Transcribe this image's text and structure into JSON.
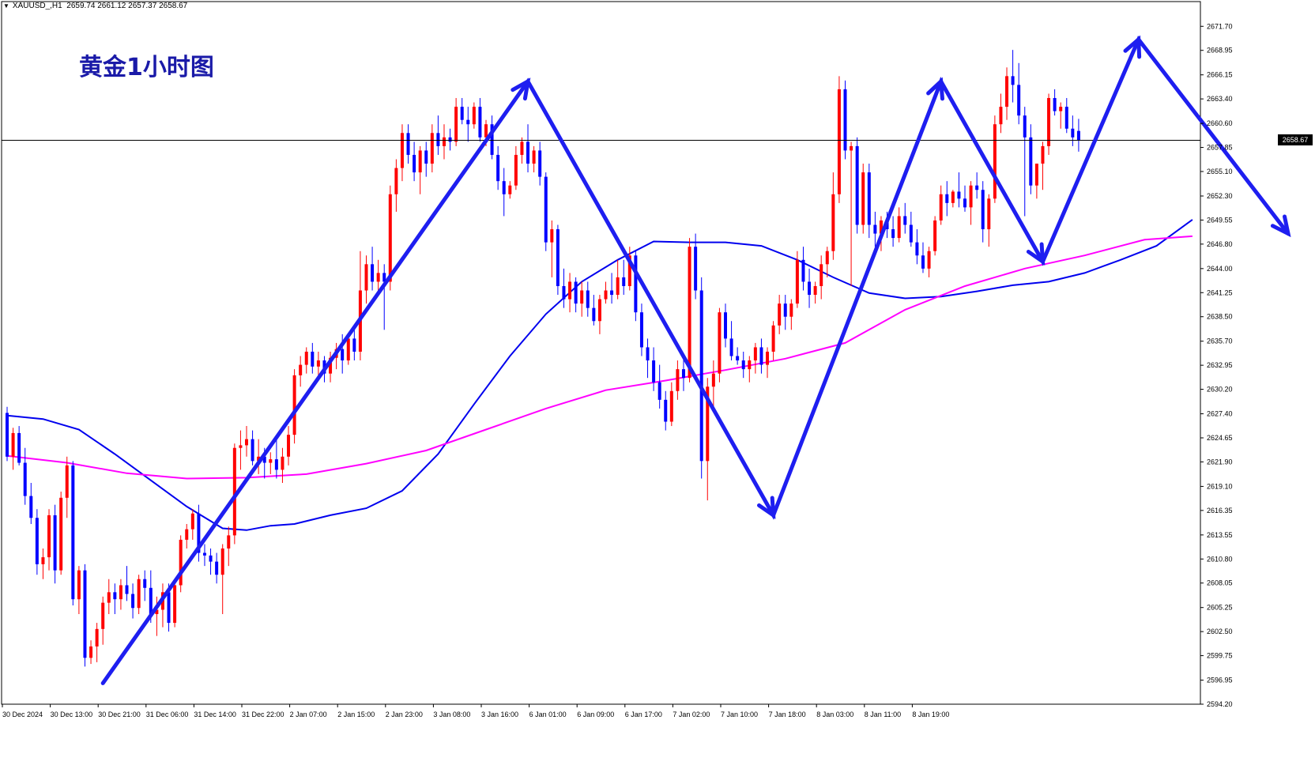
{
  "symbol": "XAUUSD_,H1",
  "ohlc": "2659.74 2661.12 2657.37 2658.67",
  "title": "黄金1小时图",
  "current_price": "2658.67",
  "colors": {
    "title": "#1a1aa8",
    "bull": "#ff0000",
    "bear": "#0000ff",
    "ma_fast": "#0000ee",
    "ma_slow": "#ff00ff",
    "arrows": "#1e1ef0",
    "axis": "#000000"
  },
  "chart_data": {
    "type": "candlestick",
    "ylim": [
      2594.2,
      2672.9
    ],
    "y_ticks": [
      "2671.70",
      "2668.95",
      "2666.15",
      "2663.40",
      "2660.60",
      "2657.85",
      "2655.10",
      "2652.30",
      "2649.55",
      "2646.80",
      "2644.00",
      "2641.25",
      "2638.50",
      "2635.70",
      "2632.95",
      "2630.20",
      "2627.40",
      "2624.65",
      "2621.90",
      "2619.10",
      "2616.35",
      "2613.55",
      "2610.80",
      "2608.05",
      "2605.25",
      "2602.50",
      "2599.75",
      "2596.95",
      "2594.20"
    ],
    "x_labels": [
      "30 Dec 2024",
      "30 Dec 13:00",
      "30 Dec 21:00",
      "31 Dec 06:00",
      "31 Dec 14:00",
      "31 Dec 22:00",
      "2 Jan 07:00",
      "2 Jan 15:00",
      "2 Jan 23:00",
      "3 Jan 08:00",
      "3 Jan 16:00",
      "6 Jan 01:00",
      "6 Jan 09:00",
      "6 Jan 17:00",
      "7 Jan 02:00",
      "7 Jan 10:00",
      "7 Jan 18:00",
      "8 Jan 03:00",
      "8 Jan 11:00",
      "8 Jan 19:00"
    ],
    "candles_per_label": 8,
    "candles": [
      [
        2627.5,
        2628.2,
        2622.0,
        2622.5
      ],
      [
        2622.5,
        2625.8,
        2621.0,
        2625.2
      ],
      [
        2625.2,
        2626.0,
        2621.5,
        2621.8
      ],
      [
        2621.8,
        2623.5,
        2617.0,
        2618.0
      ],
      [
        2618.0,
        2619.5,
        2614.8,
        2615.5
      ],
      [
        2615.5,
        2616.5,
        2609.0,
        2610.2
      ],
      [
        2610.2,
        2612.0,
        2608.5,
        2611.0
      ],
      [
        2611.0,
        2616.5,
        2609.5,
        2615.8
      ],
      [
        2615.8,
        2617.0,
        2608.0,
        2609.5
      ],
      [
        2609.5,
        2618.5,
        2609.0,
        2617.8
      ],
      [
        2617.8,
        2622.5,
        2615.5,
        2621.5
      ],
      [
        2621.5,
        2622.0,
        2605.5,
        2606.2
      ],
      [
        2606.2,
        2610.0,
        2604.5,
        2609.5
      ],
      [
        2609.5,
        2610.2,
        2598.5,
        2599.5
      ],
      [
        2599.5,
        2601.5,
        2598.8,
        2600.8
      ],
      [
        2600.8,
        2603.5,
        2599.0,
        2602.8
      ],
      [
        2602.8,
        2606.5,
        2601.0,
        2605.8
      ],
      [
        2605.8,
        2608.5,
        2604.5,
        2607.0
      ],
      [
        2607.0,
        2608.0,
        2604.5,
        2606.2
      ],
      [
        2606.2,
        2608.5,
        2605.0,
        2607.8
      ],
      [
        2607.8,
        2610.0,
        2606.0,
        2606.8
      ],
      [
        2606.8,
        2608.0,
        2604.0,
        2605.2
      ],
      [
        2605.2,
        2609.0,
        2604.5,
        2608.5
      ],
      [
        2608.5,
        2609.5,
        2606.0,
        2607.5
      ],
      [
        2607.5,
        2609.5,
        2603.5,
        2604.5
      ],
      [
        2604.5,
        2606.5,
        2602.0,
        2605.0
      ],
      [
        2605.0,
        2608.0,
        2603.0,
        2607.0
      ],
      [
        2607.0,
        2608.0,
        2602.5,
        2603.5
      ],
      [
        2603.5,
        2608.5,
        2603.0,
        2607.8
      ],
      [
        2607.8,
        2613.5,
        2607.0,
        2613.0
      ],
      [
        2613.0,
        2614.8,
        2612.0,
        2614.2
      ],
      [
        2614.2,
        2616.5,
        2613.0,
        2616.0
      ],
      [
        2616.0,
        2617.0,
        2610.5,
        2611.5
      ],
      [
        2611.5,
        2612.5,
        2610.0,
        2611.2
      ],
      [
        2611.2,
        2612.0,
        2609.0,
        2610.5
      ],
      [
        2610.5,
        2611.5,
        2608.0,
        2609.0
      ],
      [
        2609.0,
        2612.5,
        2604.5,
        2612.0
      ],
      [
        2612.0,
        2614.5,
        2610.0,
        2613.5
      ],
      [
        2613.5,
        2624.0,
        2612.5,
        2623.5
      ],
      [
        2623.5,
        2625.5,
        2621.0,
        2623.8
      ],
      [
        2623.8,
        2626.0,
        2622.5,
        2624.5
      ],
      [
        2624.5,
        2625.5,
        2621.5,
        2622.0
      ],
      [
        2622.0,
        2624.5,
        2620.5,
        2622.5
      ],
      [
        2622.5,
        2623.5,
        2620.0,
        2621.8
      ],
      [
        2621.8,
        2623.0,
        2620.5,
        2622.2
      ],
      [
        2622.2,
        2624.5,
        2620.0,
        2621.0
      ],
      [
        2621.0,
        2623.5,
        2619.5,
        2622.5
      ],
      [
        2622.5,
        2626.0,
        2621.5,
        2625.0
      ],
      [
        2625.0,
        2632.5,
        2624.0,
        2631.8
      ],
      [
        2631.8,
        2634.0,
        2630.5,
        2633.0
      ],
      [
        2633.0,
        2635.0,
        2632.0,
        2634.5
      ],
      [
        2634.5,
        2635.5,
        2632.0,
        2632.8
      ],
      [
        2632.8,
        2634.5,
        2631.5,
        2633.5
      ],
      [
        2633.5,
        2634.0,
        2631.0,
        2632.0
      ],
      [
        2632.0,
        2634.5,
        2631.0,
        2633.8
      ],
      [
        2633.8,
        2635.5,
        2632.5,
        2634.8
      ],
      [
        2634.8,
        2636.5,
        2632.0,
        2633.5
      ],
      [
        2633.5,
        2636.5,
        2633.0,
        2636.0
      ],
      [
        2636.0,
        2637.0,
        2633.5,
        2634.5
      ],
      [
        2634.5,
        2646.0,
        2633.5,
        2641.5
      ],
      [
        2641.5,
        2645.5,
        2640.0,
        2644.5
      ],
      [
        2644.5,
        2646.5,
        2641.5,
        2642.5
      ],
      [
        2642.5,
        2645.0,
        2641.0,
        2643.5
      ],
      [
        2643.5,
        2644.5,
        2637.0,
        2642.5
      ],
      [
        2642.5,
        2653.5,
        2641.5,
        2652.5
      ],
      [
        2652.5,
        2656.5,
        2650.5,
        2655.5
      ],
      [
        2655.5,
        2660.5,
        2654.0,
        2659.5
      ],
      [
        2659.5,
        2660.5,
        2656.0,
        2657.0
      ],
      [
        2657.0,
        2658.5,
        2654.0,
        2655.0
      ],
      [
        2655.0,
        2658.0,
        2652.5,
        2657.5
      ],
      [
        2657.5,
        2658.5,
        2654.5,
        2656.0
      ],
      [
        2656.0,
        2660.5,
        2655.0,
        2659.5
      ],
      [
        2659.5,
        2661.5,
        2657.0,
        2658.0
      ],
      [
        2658.0,
        2660.5,
        2656.5,
        2659.0
      ],
      [
        2659.0,
        2660.0,
        2657.5,
        2658.5
      ],
      [
        2658.5,
        2663.5,
        2658.0,
        2662.5
      ],
      [
        2662.5,
        2663.5,
        2660.5,
        2661.0
      ],
      [
        2661.0,
        2662.5,
        2658.5,
        2660.5
      ],
      [
        2660.5,
        2663.0,
        2660.0,
        2662.5
      ],
      [
        2662.5,
        2663.5,
        2658.5,
        2659.0
      ],
      [
        2659.0,
        2661.0,
        2658.0,
        2660.5
      ],
      [
        2660.5,
        2661.5,
        2656.5,
        2657.0
      ],
      [
        2657.0,
        2658.0,
        2653.0,
        2654.0
      ],
      [
        2654.0,
        2655.5,
        2650.0,
        2652.5
      ],
      [
        2652.5,
        2654.0,
        2652.0,
        2653.5
      ],
      [
        2653.5,
        2658.0,
        2653.0,
        2657.0
      ],
      [
        2657.0,
        2659.0,
        2656.0,
        2658.5
      ],
      [
        2658.5,
        2660.5,
        2655.0,
        2656.0
      ],
      [
        2656.0,
        2658.0,
        2655.0,
        2657.5
      ],
      [
        2657.5,
        2658.5,
        2653.5,
        2654.5
      ],
      [
        2654.5,
        2655.0,
        2646.0,
        2647.0
      ],
      [
        2647.0,
        2649.5,
        2643.0,
        2648.5
      ],
      [
        2648.5,
        2649.0,
        2641.0,
        2642.0
      ],
      [
        2642.0,
        2644.0,
        2639.5,
        2640.5
      ],
      [
        2640.5,
        2643.5,
        2639.0,
        2642.5
      ],
      [
        2642.5,
        2643.0,
        2639.0,
        2640.0
      ],
      [
        2640.0,
        2642.5,
        2638.5,
        2641.5
      ],
      [
        2641.5,
        2642.5,
        2638.5,
        2639.5
      ],
      [
        2639.5,
        2641.0,
        2637.5,
        2638.0
      ],
      [
        2638.0,
        2641.0,
        2636.5,
        2640.5
      ],
      [
        2640.5,
        2642.5,
        2640.0,
        2641.5
      ],
      [
        2641.5,
        2643.5,
        2640.0,
        2641.0
      ],
      [
        2641.0,
        2645.0,
        2640.5,
        2643.0
      ],
      [
        2643.0,
        2645.0,
        2641.0,
        2642.0
      ],
      [
        2642.0,
        2646.5,
        2641.5,
        2645.5
      ],
      [
        2645.5,
        2646.0,
        2638.0,
        2639.0
      ],
      [
        2639.0,
        2640.0,
        2634.0,
        2635.0
      ],
      [
        2635.0,
        2636.0,
        2631.5,
        2633.5
      ],
      [
        2633.5,
        2635.0,
        2630.0,
        2631.0
      ],
      [
        2631.0,
        2633.0,
        2628.0,
        2629.0
      ],
      [
        2629.0,
        2630.0,
        2625.5,
        2626.5
      ],
      [
        2626.5,
        2631.0,
        2626.0,
        2630.0
      ],
      [
        2630.0,
        2633.5,
        2629.0,
        2632.5
      ],
      [
        2632.5,
        2634.0,
        2630.0,
        2631.5
      ],
      [
        2631.5,
        2647.5,
        2631.0,
        2646.5
      ],
      [
        2646.5,
        2648.0,
        2640.5,
        2641.5
      ],
      [
        2641.5,
        2643.0,
        2620.0,
        2622.0
      ],
      [
        2622.0,
        2631.5,
        2617.5,
        2630.5
      ],
      [
        2630.5,
        2633.5,
        2628.0,
        2632.0
      ],
      [
        2632.0,
        2639.5,
        2631.0,
        2639.0
      ],
      [
        2639.0,
        2640.0,
        2635.0,
        2636.0
      ],
      [
        2636.0,
        2638.0,
        2633.5,
        2634.0
      ],
      [
        2634.0,
        2635.0,
        2633.0,
        2633.5
      ],
      [
        2633.5,
        2634.5,
        2631.5,
        2632.5
      ],
      [
        2632.5,
        2634.0,
        2631.0,
        2633.5
      ],
      [
        2633.5,
        2635.5,
        2632.0,
        2635.0
      ],
      [
        2635.0,
        2636.0,
        2632.0,
        2633.0
      ],
      [
        2633.0,
        2635.0,
        2631.5,
        2634.5
      ],
      [
        2634.5,
        2638.0,
        2633.5,
        2637.5
      ],
      [
        2637.5,
        2641.0,
        2636.5,
        2640.0
      ],
      [
        2640.0,
        2641.0,
        2637.0,
        2638.5
      ],
      [
        2638.5,
        2640.5,
        2637.0,
        2640.0
      ],
      [
        2640.0,
        2646.0,
        2639.5,
        2645.0
      ],
      [
        2645.0,
        2646.5,
        2641.5,
        2642.5
      ],
      [
        2642.5,
        2644.0,
        2639.5,
        2641.0
      ],
      [
        2641.0,
        2642.5,
        2640.0,
        2642.0
      ],
      [
        2642.0,
        2645.5,
        2640.5,
        2644.5
      ],
      [
        2644.5,
        2646.5,
        2643.0,
        2646.0
      ],
      [
        2646.0,
        2655.0,
        2645.0,
        2652.5
      ],
      [
        2652.5,
        2666.0,
        2651.5,
        2664.5
      ],
      [
        2664.5,
        2665.5,
        2656.5,
        2657.5
      ],
      [
        2657.5,
        2658.5,
        2642.0,
        2658.0
      ],
      [
        2658.0,
        2659.0,
        2648.0,
        2649.0
      ],
      [
        2649.0,
        2656.0,
        2648.0,
        2655.0
      ],
      [
        2655.0,
        2656.0,
        2647.5,
        2649.0
      ],
      [
        2649.0,
        2650.5,
        2646.5,
        2648.0
      ],
      [
        2648.0,
        2650.0,
        2646.0,
        2649.5
      ],
      [
        2649.5,
        2650.5,
        2647.5,
        2648.5
      ],
      [
        2648.5,
        2650.0,
        2646.5,
        2647.5
      ],
      [
        2647.5,
        2651.0,
        2647.0,
        2650.0
      ],
      [
        2650.0,
        2651.5,
        2648.0,
        2649.0
      ],
      [
        2649.0,
        2650.5,
        2646.5,
        2647.0
      ],
      [
        2647.0,
        2648.5,
        2644.5,
        2645.5
      ],
      [
        2645.5,
        2647.0,
        2643.5,
        2644.0
      ],
      [
        2644.0,
        2646.5,
        2643.0,
        2646.0
      ],
      [
        2646.0,
        2650.0,
        2645.5,
        2649.5
      ],
      [
        2649.5,
        2653.5,
        2649.0,
        2652.5
      ],
      [
        2652.5,
        2654.0,
        2650.0,
        2651.5
      ],
      [
        2651.5,
        2653.0,
        2651.0,
        2652.8
      ],
      [
        2652.8,
        2655.0,
        2651.0,
        2652.0
      ],
      [
        2652.0,
        2653.5,
        2650.5,
        2651.0
      ],
      [
        2651.0,
        2654.0,
        2649.0,
        2653.5
      ],
      [
        2653.5,
        2655.0,
        2652.0,
        2653.0
      ],
      [
        2653.0,
        2654.0,
        2647.0,
        2648.5
      ],
      [
        2648.5,
        2652.5,
        2646.5,
        2652.0
      ],
      [
        2652.0,
        2661.5,
        2651.5,
        2660.5
      ],
      [
        2660.5,
        2664.0,
        2659.5,
        2662.5
      ],
      [
        2662.5,
        2667.0,
        2661.0,
        2666.0
      ],
      [
        2666.0,
        2669.0,
        2663.0,
        2665.0
      ],
      [
        2665.0,
        2667.5,
        2660.5,
        2661.5
      ],
      [
        2661.5,
        2662.5,
        2650.0,
        2659.0
      ],
      [
        2659.0,
        2660.5,
        2652.5,
        2653.5
      ],
      [
        2653.5,
        2656.0,
        2652.0,
        2656.0
      ],
      [
        2656.0,
        2658.5,
        2653.0,
        2658.0
      ],
      [
        2658.0,
        2664.0,
        2657.0,
        2663.5
      ],
      [
        2663.5,
        2664.5,
        2661.5,
        2662.0
      ],
      [
        2662.0,
        2663.0,
        2660.0,
        2662.5
      ],
      [
        2662.5,
        2663.5,
        2659.5,
        2660.0
      ],
      [
        2660.0,
        2661.5,
        2658.0,
        2659.0
      ],
      [
        2659.74,
        2661.12,
        2657.37,
        2658.67
      ]
    ],
    "series": [
      {
        "name": "",
        "color": "#0000ee",
        "values": [
          [
            0,
            2627.2
          ],
          [
            6,
            2626.8
          ],
          [
            12,
            2625.6
          ],
          [
            18,
            2622.8
          ],
          [
            24,
            2619.8
          ],
          [
            30,
            2616.8
          ],
          [
            36,
            2614.3
          ],
          [
            40,
            2614.1
          ],
          [
            44,
            2614.6
          ],
          [
            48,
            2614.8
          ],
          [
            54,
            2615.8
          ],
          [
            60,
            2616.6
          ],
          [
            66,
            2618.6
          ],
          [
            72,
            2622.8
          ],
          [
            78,
            2628.5
          ],
          [
            84,
            2634.0
          ],
          [
            90,
            2638.8
          ],
          [
            96,
            2642.5
          ],
          [
            102,
            2645.0
          ],
          [
            108,
            2647.1
          ],
          [
            114,
            2647.0
          ],
          [
            120,
            2647.0
          ],
          [
            126,
            2646.6
          ],
          [
            132,
            2645.0
          ],
          [
            138,
            2643.0
          ],
          [
            144,
            2641.2
          ],
          [
            150,
            2640.6
          ],
          [
            156,
            2640.8
          ],
          [
            162,
            2641.4
          ],
          [
            168,
            2642.1
          ],
          [
            174,
            2642.5
          ],
          [
            180,
            2643.5
          ],
          [
            186,
            2645.0
          ],
          [
            192,
            2646.6
          ],
          [
            198,
            2649.6
          ]
        ]
      },
      {
        "name": "",
        "color": "#ff00ff",
        "values": [
          [
            0,
            2622.6
          ],
          [
            10,
            2621.8
          ],
          [
            20,
            2620.6
          ],
          [
            30,
            2620.0
          ],
          [
            40,
            2620.1
          ],
          [
            50,
            2620.5
          ],
          [
            60,
            2621.7
          ],
          [
            70,
            2623.2
          ],
          [
            80,
            2625.6
          ],
          [
            90,
            2628.0
          ],
          [
            100,
            2630.1
          ],
          [
            110,
            2631.2
          ],
          [
            120,
            2632.4
          ],
          [
            130,
            2633.7
          ],
          [
            140,
            2635.5
          ],
          [
            150,
            2639.3
          ],
          [
            160,
            2642.0
          ],
          [
            170,
            2644.0
          ],
          [
            180,
            2645.5
          ],
          [
            190,
            2647.3
          ],
          [
            198,
            2647.7
          ]
        ]
      }
    ],
    "trend_arrows": [
      [
        16,
        2596.6
      ],
      [
        87,
        2665.4
      ],
      [
        128,
        2615.8
      ],
      [
        156,
        2665.4
      ],
      [
        173,
        2644.8
      ],
      [
        189,
        2670.2
      ],
      [
        214,
        2648.0
      ]
    ]
  }
}
